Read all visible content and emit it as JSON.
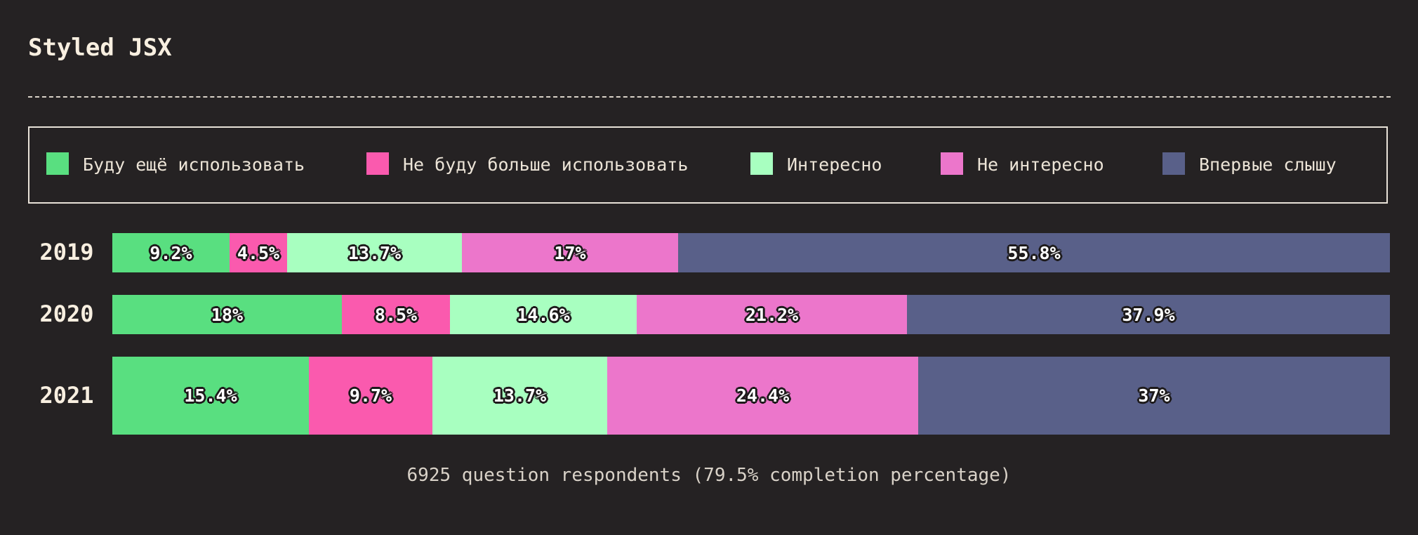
{
  "title": "Styled JSX",
  "footer": "6925 question respondents (79.5% completion percentage)",
  "legend": [
    {
      "label": "Буду ещё использовать",
      "color": "#59df80"
    },
    {
      "label": "Не буду больше использовать",
      "color": "#fa5aae"
    },
    {
      "label": "Интересно",
      "color": "#a8ffc0"
    },
    {
      "label": "Не интересно",
      "color": "#ec76cb"
    },
    {
      "label": "Впервые слышу",
      "color": "#596089"
    }
  ],
  "chart_data": {
    "type": "bar",
    "orientation": "horizontal",
    "stacked": true,
    "normalized_percent": true,
    "categories": [
      "2019",
      "2020",
      "2021"
    ],
    "series": [
      {
        "name": "Буду ещё использовать",
        "values": [
          9.2,
          18,
          15.4
        ],
        "labels": [
          "9.2%",
          "18%",
          "15.4%"
        ]
      },
      {
        "name": "Не буду больше использовать",
        "values": [
          4.5,
          8.5,
          9.7
        ],
        "labels": [
          "4.5%",
          "8.5%",
          "9.7%"
        ]
      },
      {
        "name": "Интересно",
        "values": [
          13.7,
          14.6,
          13.7
        ],
        "labels": [
          "13.7%",
          "14.6%",
          "13.7%"
        ]
      },
      {
        "name": "Не интересно",
        "values": [
          17,
          21.2,
          24.4
        ],
        "labels": [
          "17%",
          "21.2%",
          "24.4%"
        ]
      },
      {
        "name": "Впервые слышу",
        "values": [
          55.8,
          37.9,
          37
        ],
        "labels": [
          "55.8%",
          "37.9%",
          "37%"
        ]
      }
    ],
    "legend_position": "top",
    "grid": false
  }
}
